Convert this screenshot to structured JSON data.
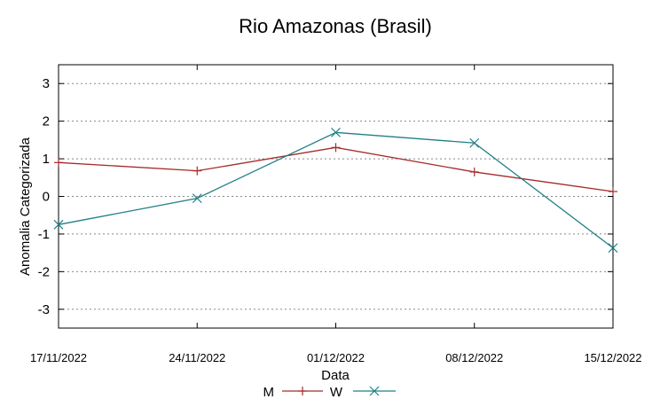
{
  "chart_data": {
    "type": "line",
    "title": "Rio Amazonas (Brasil)",
    "xlabel": "Data",
    "ylabel": "Anomalia Categorizada",
    "categories": [
      "17/11/2022",
      "24/11/2022",
      "01/12/2022",
      "08/12/2022",
      "15/12/2022"
    ],
    "yticks": [
      3,
      2,
      1,
      0,
      -1,
      -2,
      -3
    ],
    "ylim": [
      -3.5,
      3.5
    ],
    "grid": true,
    "legend_position": "bottom-center",
    "series": [
      {
        "name": "M",
        "color": "#a52a2a",
        "marker": "plus",
        "values": [
          0.9,
          0.68,
          1.3,
          0.65,
          0.13
        ]
      },
      {
        "name": "W",
        "color": "#1f7f85",
        "marker": "x",
        "values": [
          -0.75,
          -0.05,
          1.7,
          1.42,
          -1.37
        ]
      }
    ]
  }
}
